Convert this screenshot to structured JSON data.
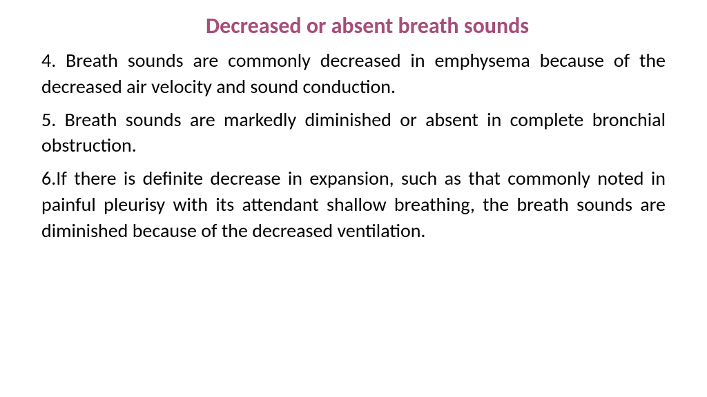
{
  "title": {
    "text": "Decreased or absent breath sounds",
    "color": "#a64d79",
    "fontsize": 32
  },
  "body": {
    "color": "#000000",
    "fontsize": 28,
    "paragraphs": [
      "4. Breath sounds are commonly decreased in emphysema because of the decreased air velocity and sound conduction.",
      "5. Breath sounds are markedly diminished or absent in complete bronchial obstruction.",
      "6.If there is definite decrease in expansion, such as that commonly noted in painful pleurisy with its attendant shallow breathing, the breath sounds are diminished because of the decreased ventilation."
    ]
  }
}
